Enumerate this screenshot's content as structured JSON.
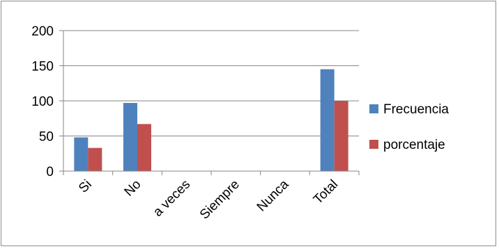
{
  "chart_data": {
    "type": "bar",
    "categories": [
      "Si",
      "No",
      "a veces",
      "Siempre",
      "Nunca",
      "Total"
    ],
    "series": [
      {
        "name": "Frecuencia",
        "values": [
          48,
          97,
          0,
          0,
          0,
          145
        ],
        "color": "#4f81bd"
      },
      {
        "name": "porcentaje",
        "values": [
          33,
          67,
          0,
          0,
          0,
          100
        ],
        "color": "#c0504d"
      }
    ],
    "title": "",
    "xlabel": "",
    "ylabel": "",
    "ylim": [
      0,
      200
    ],
    "yticks": [
      0,
      50,
      100,
      150,
      200
    ],
    "grid": true,
    "legend_position": "right"
  }
}
